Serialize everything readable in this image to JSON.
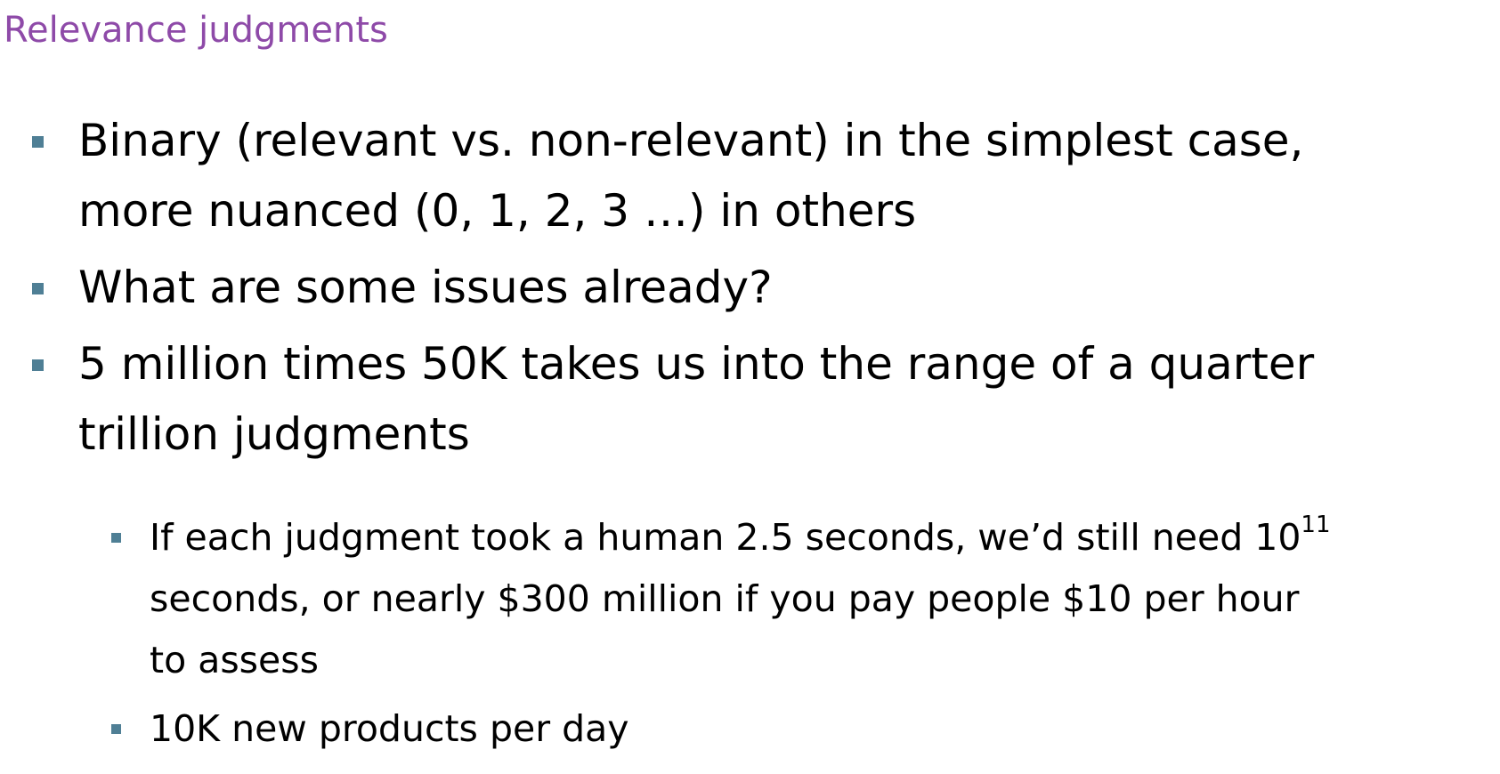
{
  "slide": {
    "title": "Relevance judgments",
    "title_color": "#8e4aa8",
    "bullet_color": "#4f7f95",
    "bullets": [
      {
        "lines": [
          "Binary (relevant vs. non-relevant) in the simplest case,",
          "more nuanced (0, 1, 2, 3 …) in others"
        ]
      },
      {
        "lines": [
          "What are some issues already?"
        ]
      },
      {
        "lines": [
          "5 million times 50K takes us into the range of a quarter",
          "trillion judgments"
        ],
        "sub_bullets": [
          {
            "line1_text": "If each judgment took a human 2.5 seconds, we’d still need 10",
            "line1_superscript": "11",
            "line2": "seconds, or nearly $300 million if you pay people $10 per hour",
            "line3": "to assess"
          },
          {
            "line1_text": "10K new products per day"
          }
        ]
      }
    ]
  }
}
